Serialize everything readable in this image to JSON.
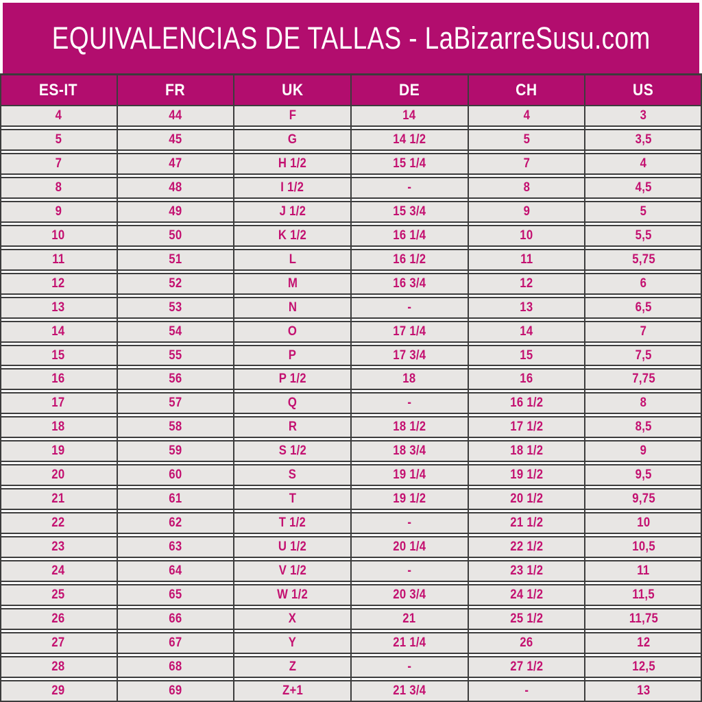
{
  "page": {
    "title": "EQUIVALENCIAS DE TALLAS - LaBizarreSusu.com"
  },
  "colors": {
    "magenta": "#b20d6e",
    "header_text": "#ffffff",
    "cell_text": "#c31070",
    "row_bg": "#e8e6e4",
    "grid_line": "#3c3c3c",
    "gap": "#fdfdfd"
  },
  "chart_data": {
    "type": "table",
    "title": "EQUIVALENCIAS DE TALLAS - LaBizarreSusu.com",
    "columns": [
      "ES-IT",
      "FR",
      "UK",
      "DE",
      "CH",
      "US"
    ],
    "rows": [
      [
        "4",
        "44",
        "F",
        "14",
        "4",
        "3"
      ],
      [
        "5",
        "45",
        "G",
        "14 1/2",
        "5",
        "3,5"
      ],
      [
        "7",
        "47",
        "H 1/2",
        "15 1/4",
        "7",
        "4"
      ],
      [
        "8",
        "48",
        "I 1/2",
        "-",
        "8",
        "4,5"
      ],
      [
        "9",
        "49",
        "J 1/2",
        "15 3/4",
        "9",
        "5"
      ],
      [
        "10",
        "50",
        "K 1/2",
        "16 1/4",
        "10",
        "5,5"
      ],
      [
        "11",
        "51",
        "L",
        "16 1/2",
        "11",
        "5,75"
      ],
      [
        "12",
        "52",
        "M",
        "16 3/4",
        "12",
        "6"
      ],
      [
        "13",
        "53",
        "N",
        "-",
        "13",
        "6,5"
      ],
      [
        "14",
        "54",
        "O",
        "17 1/4",
        "14",
        "7"
      ],
      [
        "15",
        "55",
        "P",
        "17 3/4",
        "15",
        "7,5"
      ],
      [
        "16",
        "56",
        "P 1/2",
        "18",
        "16",
        "7,75"
      ],
      [
        "17",
        "57",
        "Q",
        "-",
        "16 1/2",
        "8"
      ],
      [
        "18",
        "58",
        "R",
        "18 1/2",
        "17 1/2",
        "8,5"
      ],
      [
        "19",
        "59",
        "S 1/2",
        "18 3/4",
        "18 1/2",
        "9"
      ],
      [
        "20",
        "60",
        "S",
        "19 1/4",
        "19 1/2",
        "9,5"
      ],
      [
        "21",
        "61",
        "T",
        "19 1/2",
        "20 1/2",
        "9,75"
      ],
      [
        "22",
        "62",
        "T 1/2",
        "-",
        "21 1/2",
        "10"
      ],
      [
        "23",
        "63",
        "U 1/2",
        "20 1/4",
        "22 1/2",
        "10,5"
      ],
      [
        "24",
        "64",
        "V 1/2",
        "-",
        "23 1/2",
        "11"
      ],
      [
        "25",
        "65",
        "W 1/2",
        "20 3/4",
        "24 1/2",
        "11,5"
      ],
      [
        "26",
        "66",
        "X",
        "21",
        "25 1/2",
        "11,75"
      ],
      [
        "27",
        "67",
        "Y",
        "21 1/4",
        "26",
        "12"
      ],
      [
        "28",
        "68",
        "Z",
        "-",
        "27 1/2",
        "12,5"
      ],
      [
        "29",
        "69",
        "Z+1",
        "21 3/4",
        "-",
        "13"
      ]
    ]
  }
}
